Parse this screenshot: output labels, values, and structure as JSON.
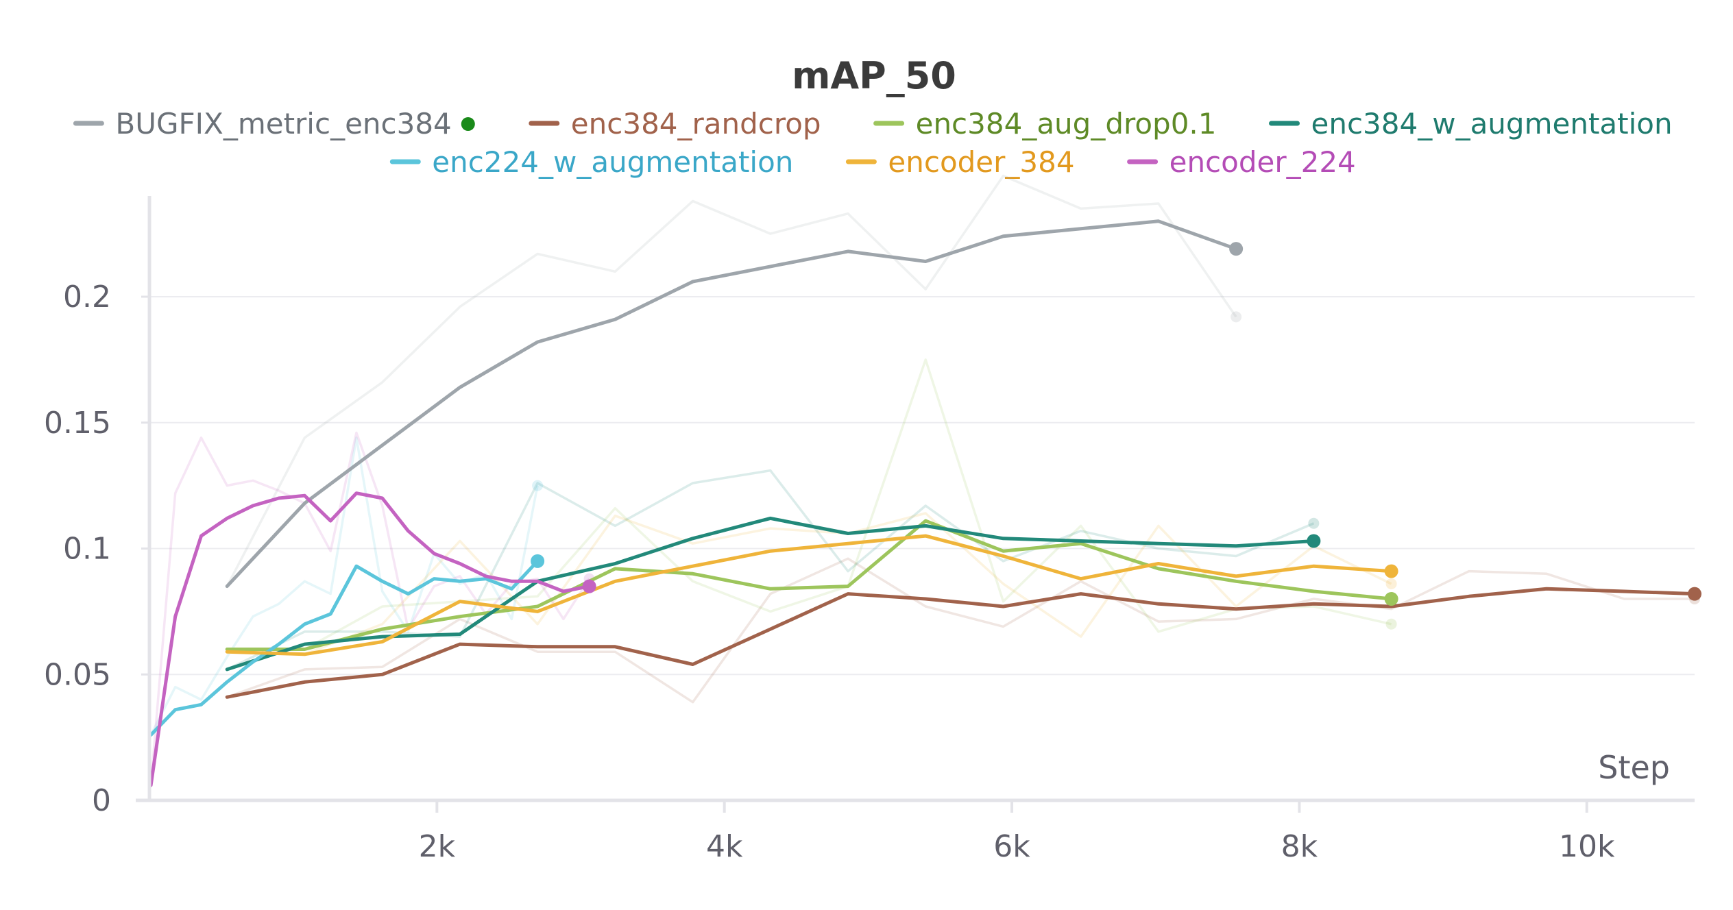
{
  "chart_data": {
    "type": "line",
    "title": "mAP_50",
    "xlabel": "Step",
    "ylabel": "",
    "xlim": [
      0,
      10750
    ],
    "ylim": [
      0,
      0.24
    ],
    "x_ticks": [
      2000,
      4000,
      6000,
      8000,
      10000
    ],
    "x_tick_labels": [
      "2k",
      "4k",
      "6k",
      "8k",
      "10k"
    ],
    "y_ticks": [
      0,
      0.05,
      0.1,
      0.15,
      0.2
    ],
    "y_tick_labels": [
      "0",
      "0.05",
      "0.1",
      "0.15",
      "0.2"
    ],
    "grid": "horizontal",
    "legend_position": "top",
    "series": [
      {
        "name": "BUGFIX_metric_enc384",
        "legend_marker": "●",
        "legend_marker_color": "#1a8a1a",
        "color": "#9ea5ab",
        "label_color": "#6b7178",
        "smoothed": [
          [
            540,
            0.085
          ],
          [
            1080,
            0.118
          ],
          [
            1620,
            0.141
          ],
          [
            2160,
            0.164
          ],
          [
            2700,
            0.182
          ],
          [
            3240,
            0.191
          ],
          [
            3780,
            0.206
          ],
          [
            4320,
            0.212
          ],
          [
            4860,
            0.218
          ],
          [
            5400,
            0.214
          ],
          [
            5940,
            0.224
          ],
          [
            6480,
            0.227
          ],
          [
            7020,
            0.23
          ],
          [
            7560,
            0.219
          ]
        ],
        "raw": [
          [
            540,
            0.085
          ],
          [
            1080,
            0.144
          ],
          [
            1620,
            0.166
          ],
          [
            2160,
            0.196
          ],
          [
            2700,
            0.217
          ],
          [
            3240,
            0.21
          ],
          [
            3780,
            0.238
          ],
          [
            4320,
            0.225
          ],
          [
            4860,
            0.233
          ],
          [
            5400,
            0.203
          ],
          [
            5940,
            0.248
          ],
          [
            6480,
            0.235
          ],
          [
            7020,
            0.237
          ],
          [
            7560,
            0.192
          ]
        ]
      },
      {
        "name": "enc384_randcrop",
        "color": "#a1624b",
        "label_color": "#a1624b",
        "smoothed": [
          [
            540,
            0.041
          ],
          [
            1080,
            0.047
          ],
          [
            1620,
            0.05
          ],
          [
            2160,
            0.062
          ],
          [
            2700,
            0.061
          ],
          [
            3240,
            0.061
          ],
          [
            3780,
            0.054
          ],
          [
            4320,
            0.068
          ],
          [
            4860,
            0.082
          ],
          [
            5400,
            0.08
          ],
          [
            5940,
            0.077
          ],
          [
            6480,
            0.082
          ],
          [
            7020,
            0.078
          ],
          [
            7560,
            0.076
          ],
          [
            8100,
            0.078
          ],
          [
            8640,
            0.077
          ],
          [
            9180,
            0.081
          ],
          [
            9720,
            0.084
          ],
          [
            10260,
            0.083
          ],
          [
            10750,
            0.082
          ]
        ],
        "raw": [
          [
            540,
            0.041
          ],
          [
            1080,
            0.052
          ],
          [
            1620,
            0.053
          ],
          [
            2160,
            0.072
          ],
          [
            2700,
            0.059
          ],
          [
            3240,
            0.059
          ],
          [
            3780,
            0.039
          ],
          [
            4320,
            0.082
          ],
          [
            4860,
            0.096
          ],
          [
            5400,
            0.077
          ],
          [
            5940,
            0.069
          ],
          [
            6480,
            0.087
          ],
          [
            7020,
            0.071
          ],
          [
            7560,
            0.072
          ],
          [
            8100,
            0.08
          ],
          [
            8640,
            0.076
          ],
          [
            9180,
            0.091
          ],
          [
            9720,
            0.09
          ],
          [
            10260,
            0.08
          ],
          [
            10750,
            0.08
          ]
        ]
      },
      {
        "name": "enc384_aug_drop0.1",
        "color": "#9dc55c",
        "label_color": "#5e8a26",
        "smoothed": [
          [
            540,
            0.06
          ],
          [
            1080,
            0.06
          ],
          [
            1620,
            0.068
          ],
          [
            2160,
            0.073
          ],
          [
            2700,
            0.077
          ],
          [
            3240,
            0.092
          ],
          [
            3780,
            0.09
          ],
          [
            4320,
            0.084
          ],
          [
            4860,
            0.085
          ],
          [
            5400,
            0.111
          ],
          [
            5940,
            0.099
          ],
          [
            6480,
            0.102
          ],
          [
            7020,
            0.092
          ],
          [
            7560,
            0.087
          ],
          [
            8100,
            0.083
          ],
          [
            8640,
            0.08
          ]
        ],
        "raw": [
          [
            540,
            0.06
          ],
          [
            1080,
            0.06
          ],
          [
            1620,
            0.077
          ],
          [
            2160,
            0.079
          ],
          [
            2700,
            0.081
          ],
          [
            3240,
            0.116
          ],
          [
            3780,
            0.087
          ],
          [
            4320,
            0.075
          ],
          [
            4860,
            0.085
          ],
          [
            5400,
            0.175
          ],
          [
            5940,
            0.079
          ],
          [
            6480,
            0.109
          ],
          [
            7020,
            0.067
          ],
          [
            7560,
            0.076
          ],
          [
            8100,
            0.077
          ],
          [
            8640,
            0.07
          ]
        ]
      },
      {
        "name": "enc384_w_augmentation",
        "color": "#22897a",
        "label_color": "#1f7b6e",
        "smoothed": [
          [
            540,
            0.052
          ],
          [
            1080,
            0.062
          ],
          [
            1620,
            0.065
          ],
          [
            2160,
            0.066
          ],
          [
            2700,
            0.087
          ],
          [
            3240,
            0.094
          ],
          [
            3780,
            0.104
          ],
          [
            4320,
            0.112
          ],
          [
            4860,
            0.106
          ],
          [
            5400,
            0.109
          ],
          [
            5940,
            0.104
          ],
          [
            6480,
            0.103
          ],
          [
            7020,
            0.102
          ],
          [
            7560,
            0.101
          ],
          [
            8100,
            0.103
          ]
        ],
        "raw": [
          [
            540,
            0.052
          ],
          [
            1080,
            0.067
          ],
          [
            1620,
            0.067
          ],
          [
            2160,
            0.065
          ],
          [
            2700,
            0.126
          ],
          [
            3240,
            0.109
          ],
          [
            3780,
            0.126
          ],
          [
            4320,
            0.131
          ],
          [
            4860,
            0.091
          ],
          [
            5400,
            0.117
          ],
          [
            5940,
            0.095
          ],
          [
            6480,
            0.107
          ],
          [
            7020,
            0.1
          ],
          [
            7560,
            0.097
          ],
          [
            8100,
            0.11
          ]
        ]
      },
      {
        "name": "enc224_w_augmentation",
        "color": "#5bc5db",
        "label_color": "#3aa7c8",
        "smoothed": [
          [
            10,
            0.026
          ],
          [
            180,
            0.036
          ],
          [
            360,
            0.038
          ],
          [
            540,
            0.047
          ],
          [
            720,
            0.055
          ],
          [
            900,
            0.062
          ],
          [
            1080,
            0.07
          ],
          [
            1260,
            0.074
          ],
          [
            1440,
            0.093
          ],
          [
            1620,
            0.087
          ],
          [
            1800,
            0.082
          ],
          [
            1980,
            0.088
          ],
          [
            2160,
            0.087
          ],
          [
            2340,
            0.088
          ],
          [
            2520,
            0.084
          ],
          [
            2700,
            0.095
          ]
        ],
        "raw": [
          [
            10,
            0.026
          ],
          [
            180,
            0.045
          ],
          [
            360,
            0.04
          ],
          [
            540,
            0.057
          ],
          [
            720,
            0.073
          ],
          [
            900,
            0.078
          ],
          [
            1080,
            0.087
          ],
          [
            1260,
            0.082
          ],
          [
            1440,
            0.144
          ],
          [
            1620,
            0.083
          ],
          [
            1800,
            0.067
          ],
          [
            1980,
            0.098
          ],
          [
            2160,
            0.086
          ],
          [
            2340,
            0.09
          ],
          [
            2520,
            0.072
          ],
          [
            2700,
            0.125
          ]
        ]
      },
      {
        "name": "encoder_384",
        "color": "#efb43a",
        "label_color": "#e2991e",
        "smoothed": [
          [
            540,
            0.059
          ],
          [
            1080,
            0.058
          ],
          [
            1620,
            0.063
          ],
          [
            2160,
            0.079
          ],
          [
            2700,
            0.075
          ],
          [
            3240,
            0.087
          ],
          [
            3780,
            0.093
          ],
          [
            4320,
            0.099
          ],
          [
            4860,
            0.102
          ],
          [
            5400,
            0.105
          ],
          [
            5940,
            0.097
          ],
          [
            6480,
            0.088
          ],
          [
            7020,
            0.094
          ],
          [
            7560,
            0.089
          ],
          [
            8100,
            0.093
          ],
          [
            8640,
            0.091
          ]
        ],
        "raw": [
          [
            540,
            0.059
          ],
          [
            1080,
            0.058
          ],
          [
            1620,
            0.07
          ],
          [
            2160,
            0.103
          ],
          [
            2700,
            0.07
          ],
          [
            3240,
            0.113
          ],
          [
            3780,
            0.102
          ],
          [
            4320,
            0.108
          ],
          [
            4860,
            0.106
          ],
          [
            5400,
            0.114
          ],
          [
            5940,
            0.086
          ],
          [
            6480,
            0.065
          ],
          [
            7020,
            0.109
          ],
          [
            7560,
            0.077
          ],
          [
            8100,
            0.101
          ],
          [
            8640,
            0.086
          ]
        ]
      },
      {
        "name": "encoder_224",
        "color": "#c463c1",
        "label_color": "#b44cb6",
        "smoothed": [
          [
            10,
            0.006
          ],
          [
            180,
            0.073
          ],
          [
            360,
            0.105
          ],
          [
            540,
            0.112
          ],
          [
            720,
            0.117
          ],
          [
            900,
            0.12
          ],
          [
            1080,
            0.121
          ],
          [
            1260,
            0.111
          ],
          [
            1440,
            0.122
          ],
          [
            1620,
            0.12
          ],
          [
            1800,
            0.107
          ],
          [
            1980,
            0.098
          ],
          [
            2160,
            0.094
          ],
          [
            2340,
            0.089
          ],
          [
            2520,
            0.087
          ],
          [
            2700,
            0.087
          ],
          [
            2880,
            0.083
          ],
          [
            3060,
            0.085
          ]
        ],
        "raw": [
          [
            10,
            0.006
          ],
          [
            180,
            0.122
          ],
          [
            360,
            0.144
          ],
          [
            540,
            0.125
          ],
          [
            720,
            0.127
          ],
          [
            900,
            0.123
          ],
          [
            1080,
            0.118
          ],
          [
            1260,
            0.099
          ],
          [
            1440,
            0.146
          ],
          [
            1620,
            0.117
          ],
          [
            1800,
            0.068
          ],
          [
            1980,
            0.085
          ],
          [
            2160,
            0.089
          ],
          [
            2340,
            0.074
          ],
          [
            2520,
            0.086
          ],
          [
            2700,
            0.088
          ],
          [
            2880,
            0.072
          ],
          [
            3060,
            0.088
          ]
        ]
      }
    ]
  }
}
